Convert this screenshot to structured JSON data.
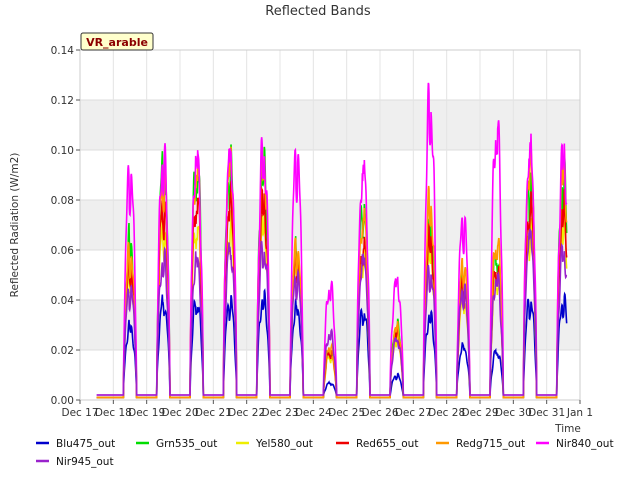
{
  "chart_data": {
    "type": "line",
    "title": "Reflected Bands",
    "ylabel": "Reflected Radiation (W/m2)",
    "xlabel": "Time",
    "site_tag": "VR_arable",
    "ylim": [
      0,
      0.14
    ],
    "yticks": [
      0.0,
      0.02,
      0.04,
      0.06,
      0.08,
      0.1,
      0.12,
      0.14
    ],
    "ytick_labels": [
      "0.00",
      "0.02",
      "0.04",
      "0.06",
      "0.08",
      "0.10",
      "0.12",
      "0.14"
    ],
    "xlim": [
      17,
      32
    ],
    "xticks": [
      17,
      18,
      19,
      20,
      21,
      22,
      23,
      24,
      25,
      26,
      27,
      28,
      29,
      30,
      31,
      32
    ],
    "xtick_labels": [
      "Dec 17",
      "Dec 18",
      "Dec 19",
      "Dec 20",
      "Dec 21",
      "Dec 22",
      "Dec 23",
      "Dec 24",
      "Dec 25",
      "Dec 26",
      "Dec 27",
      "Dec 28",
      "Dec 29",
      "Dec 30",
      "Dec 31",
      "Jan 1"
    ],
    "grid": true,
    "legend_position": "bottom",
    "days": [
      18,
      19,
      20,
      21,
      22,
      23,
      24,
      25,
      26,
      27,
      28,
      29,
      30,
      31
    ],
    "series": [
      {
        "name": "Blu475_out",
        "color": "#0000cc",
        "base": 0.001,
        "daily_peaks": [
          0.03,
          0.04,
          0.04,
          0.04,
          0.041,
          0.038,
          0.007,
          0.036,
          0.01,
          0.034,
          0.022,
          0.02,
          0.04,
          0.04
        ]
      },
      {
        "name": "Grn535_out",
        "color": "#00dd00",
        "base": 0.001,
        "daily_peaks": [
          0.065,
          0.095,
          0.095,
          0.095,
          0.095,
          0.06,
          0.02,
          0.08,
          0.03,
          0.07,
          0.05,
          0.06,
          0.09,
          0.09
        ]
      },
      {
        "name": "Yel580_out",
        "color": "#eeee00",
        "base": 0.001,
        "daily_peaks": [
          0.05,
          0.07,
          0.072,
          0.07,
          0.072,
          0.055,
          0.018,
          0.06,
          0.025,
          0.06,
          0.042,
          0.05,
          0.07,
          0.072
        ]
      },
      {
        "name": "Red655_out",
        "color": "#ee0000",
        "base": 0.001,
        "daily_peaks": [
          0.055,
          0.08,
          0.082,
          0.082,
          0.081,
          0.058,
          0.02,
          0.064,
          0.028,
          0.066,
          0.046,
          0.055,
          0.079,
          0.078
        ]
      },
      {
        "name": "Redg715_out",
        "color": "#ff9900",
        "base": 0.001,
        "daily_peaks": [
          0.06,
          0.092,
          0.095,
          0.098,
          0.098,
          0.062,
          0.022,
          0.075,
          0.03,
          0.08,
          0.055,
          0.065,
          0.098,
          0.095
        ]
      },
      {
        "name": "Nir840_out",
        "color": "#ff00ff",
        "base": 0.002,
        "daily_peaks": [
          0.092,
          0.098,
          0.1,
          0.101,
          0.101,
          0.099,
          0.046,
          0.095,
          0.049,
          0.12,
          0.073,
          0.111,
          0.103,
          0.101
        ]
      },
      {
        "name": "Nir945_out",
        "color": "#9922cc",
        "base": 0.002,
        "daily_peaks": [
          0.045,
          0.057,
          0.058,
          0.062,
          0.062,
          0.05,
          0.027,
          0.058,
          0.025,
          0.052,
          0.045,
          0.05,
          0.068,
          0.061
        ]
      }
    ]
  }
}
